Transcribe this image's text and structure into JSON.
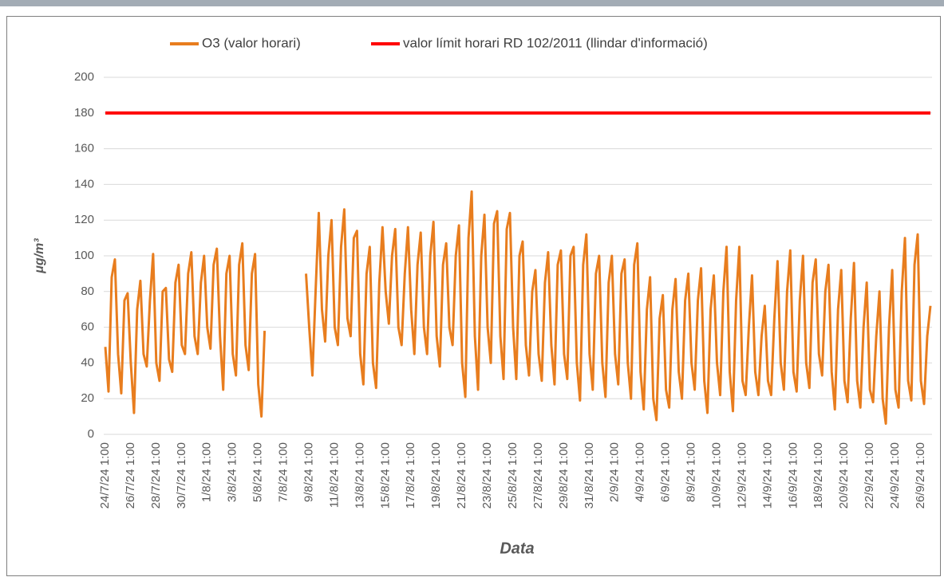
{
  "chart_data": {
    "type": "line",
    "y_label": "μg/m³",
    "x_label": "Data",
    "ylim": [
      0,
      200
    ],
    "yticks": [
      0,
      20,
      40,
      60,
      80,
      100,
      120,
      140,
      160,
      180,
      200
    ],
    "grid": true,
    "legend": "top",
    "categories": [
      "24/7/24 1:00",
      null,
      null,
      null,
      null,
      null,
      null,
      null,
      "26/7/24 1:00",
      null,
      null,
      null,
      null,
      null,
      null,
      null,
      "28/7/24 1:00",
      null,
      null,
      null,
      null,
      null,
      null,
      null,
      "30/7/24 1:00",
      null,
      null,
      null,
      null,
      null,
      null,
      null,
      "1/8/24 1:00",
      null,
      null,
      null,
      null,
      null,
      null,
      null,
      "3/8/24 1:00",
      null,
      null,
      null,
      null,
      null,
      null,
      null,
      "5/8/24 1:00",
      null,
      null,
      null,
      null,
      null,
      null,
      null,
      "7/8/24 1:00",
      null,
      null,
      null,
      null,
      null,
      null,
      null,
      "9/8/24 1:00",
      null,
      null,
      null,
      null,
      null,
      null,
      null,
      "11/8/24 1:00",
      null,
      null,
      null,
      null,
      null,
      null,
      null,
      "13/8/24 1:00",
      null,
      null,
      null,
      null,
      null,
      null,
      null,
      "15/8/24 1:00",
      null,
      null,
      null,
      null,
      null,
      null,
      null,
      "17/8/24 1:00",
      null,
      null,
      null,
      null,
      null,
      null,
      null,
      "19/8/24 1:00",
      null,
      null,
      null,
      null,
      null,
      null,
      null,
      "21/8/24 1:00",
      null,
      null,
      null,
      null,
      null,
      null,
      null,
      "23/8/24 1:00",
      null,
      null,
      null,
      null,
      null,
      null,
      null,
      "25/8/24 1:00",
      null,
      null,
      null,
      null,
      null,
      null,
      null,
      "27/8/24 1:00",
      null,
      null,
      null,
      null,
      null,
      null,
      null,
      "29/8/24 1:00",
      null,
      null,
      null,
      null,
      null,
      null,
      null,
      "31/8/24 1:00",
      null,
      null,
      null,
      null,
      null,
      null,
      null,
      "2/9/24 1:00",
      null,
      null,
      null,
      null,
      null,
      null,
      null,
      "4/9/24 1:00",
      null,
      null,
      null,
      null,
      null,
      null,
      null,
      "6/9/24 1:00",
      null,
      null,
      null,
      null,
      null,
      null,
      null,
      "8/9/24 1:00",
      null,
      null,
      null,
      null,
      null,
      null,
      null,
      "10/9/24 1:00",
      null,
      null,
      null,
      null,
      null,
      null,
      null,
      "12/9/24 1:00",
      null,
      null,
      null,
      null,
      null,
      null,
      null,
      "14/9/24 1:00",
      null,
      null,
      null,
      null,
      null,
      null,
      null,
      "16/9/24 1:00",
      null,
      null,
      null,
      null,
      null,
      null,
      null,
      "18/9/24 1:00",
      null,
      null,
      null,
      null,
      null,
      null,
      null,
      "20/9/24 1:00",
      null,
      null,
      null,
      null,
      null,
      null,
      null,
      "22/9/24 1:00",
      null,
      null,
      null,
      null,
      null,
      null,
      null,
      "24/9/24 1:00",
      null,
      null,
      null,
      null,
      null,
      null,
      null,
      "26/9/24 1:00",
      null,
      null,
      null
    ],
    "series": [
      {
        "name": "O3 (valor horari)",
        "color": "#e87d1e",
        "values": [
          49,
          24,
          88,
          98,
          45,
          23,
          75,
          79,
          40,
          12,
          70,
          86,
          45,
          38,
          75,
          101,
          40,
          30,
          80,
          82,
          42,
          35,
          85,
          95,
          50,
          45,
          90,
          102,
          55,
          45,
          85,
          100,
          60,
          48,
          95,
          104,
          55,
          25,
          90,
          100,
          45,
          33,
          95,
          107,
          50,
          36,
          90,
          101,
          28,
          10,
          58,
          null,
          null,
          null,
          null,
          null,
          null,
          null,
          null,
          null,
          null,
          null,
          null,
          90,
          60,
          33,
          80,
          124,
          70,
          52,
          100,
          120,
          60,
          50,
          105,
          126,
          65,
          55,
          110,
          114,
          45,
          28,
          90,
          105,
          40,
          26,
          85,
          116,
          80,
          62,
          100,
          115,
          60,
          50,
          90,
          116,
          70,
          45,
          95,
          113,
          60,
          45,
          100,
          119,
          55,
          38,
          95,
          107,
          60,
          50,
          100,
          117,
          40,
          21,
          110,
          136,
          55,
          25,
          100,
          123,
          60,
          40,
          118,
          125,
          55,
          31,
          115,
          124,
          60,
          31,
          100,
          108,
          50,
          33,
          80,
          92,
          45,
          30,
          85,
          102,
          50,
          28,
          95,
          103,
          45,
          31,
          100,
          105,
          40,
          19,
          95,
          112,
          45,
          25,
          90,
          100,
          40,
          21,
          85,
          100,
          45,
          28,
          90,
          98,
          40,
          20,
          95,
          107,
          35,
          14,
          70,
          88,
          20,
          8,
          65,
          78,
          25,
          15,
          70,
          87,
          35,
          20,
          75,
          90,
          40,
          25,
          75,
          93,
          30,
          12,
          70,
          89,
          40,
          22,
          80,
          105,
          35,
          13,
          75,
          105,
          30,
          22,
          60,
          89,
          35,
          22,
          55,
          72,
          30,
          22,
          65,
          97,
          40,
          25,
          80,
          103,
          35,
          24,
          75,
          100,
          40,
          26,
          85,
          98,
          45,
          33,
          80,
          95,
          35,
          14,
          70,
          92,
          30,
          18,
          65,
          96,
          30,
          15,
          60,
          85,
          25,
          18,
          55,
          80,
          20,
          6,
          60,
          92,
          25,
          15,
          80,
          110,
          30,
          19,
          95,
          112,
          30,
          17,
          55,
          72
        ]
      },
      {
        "name": "valor límit horari RD 102/2011 (llindar d'informació)",
        "color": "#ff0000",
        "values": [
          180,
          180,
          180,
          180,
          180,
          180,
          180,
          180,
          180,
          180,
          180,
          180,
          180,
          180,
          180,
          180,
          180,
          180,
          180,
          180,
          180,
          180,
          180,
          180,
          180,
          180,
          180,
          180,
          180,
          180,
          180,
          180,
          180,
          180,
          180,
          180,
          180,
          180,
          180,
          180,
          180,
          180,
          180,
          180,
          180,
          180,
          180,
          180,
          180,
          180,
          180,
          180,
          180,
          180,
          180,
          180,
          180,
          180,
          180,
          180,
          180,
          180,
          180,
          180,
          180,
          180,
          180,
          180,
          180,
          180,
          180,
          180,
          180,
          180,
          180,
          180,
          180,
          180,
          180,
          180,
          180,
          180,
          180,
          180,
          180,
          180,
          180,
          180,
          180,
          180,
          180,
          180,
          180,
          180,
          180,
          180,
          180,
          180,
          180,
          180,
          180,
          180,
          180,
          180,
          180,
          180,
          180,
          180,
          180,
          180,
          180,
          180,
          180,
          180,
          180,
          180,
          180,
          180,
          180,
          180,
          180,
          180,
          180,
          180,
          180,
          180,
          180,
          180,
          180,
          180,
          180,
          180,
          180,
          180,
          180,
          180,
          180,
          180,
          180,
          180,
          180,
          180,
          180,
          180,
          180,
          180,
          180,
          180,
          180,
          180,
          180,
          180,
          180,
          180,
          180,
          180,
          180,
          180,
          180,
          180,
          180,
          180,
          180,
          180,
          180,
          180,
          180,
          180,
          180,
          180,
          180,
          180,
          180,
          180,
          180,
          180,
          180,
          180,
          180,
          180,
          180,
          180,
          180,
          180,
          180,
          180,
          180,
          180,
          180,
          180,
          180,
          180,
          180,
          180,
          180,
          180,
          180,
          180,
          180,
          180,
          180,
          180,
          180,
          180,
          180,
          180,
          180,
          180,
          180,
          180,
          180,
          180,
          180,
          180,
          180,
          180,
          180,
          180,
          180,
          180,
          180,
          180,
          180,
          180,
          180,
          180,
          180,
          180,
          180,
          180,
          180,
          180,
          180,
          180,
          180,
          180,
          180,
          180,
          180,
          180,
          180,
          180,
          180,
          180,
          180,
          180,
          180,
          180,
          180,
          180,
          180,
          180,
          180,
          180,
          180,
          180,
          180,
          180,
          180,
          180
        ]
      }
    ]
  }
}
